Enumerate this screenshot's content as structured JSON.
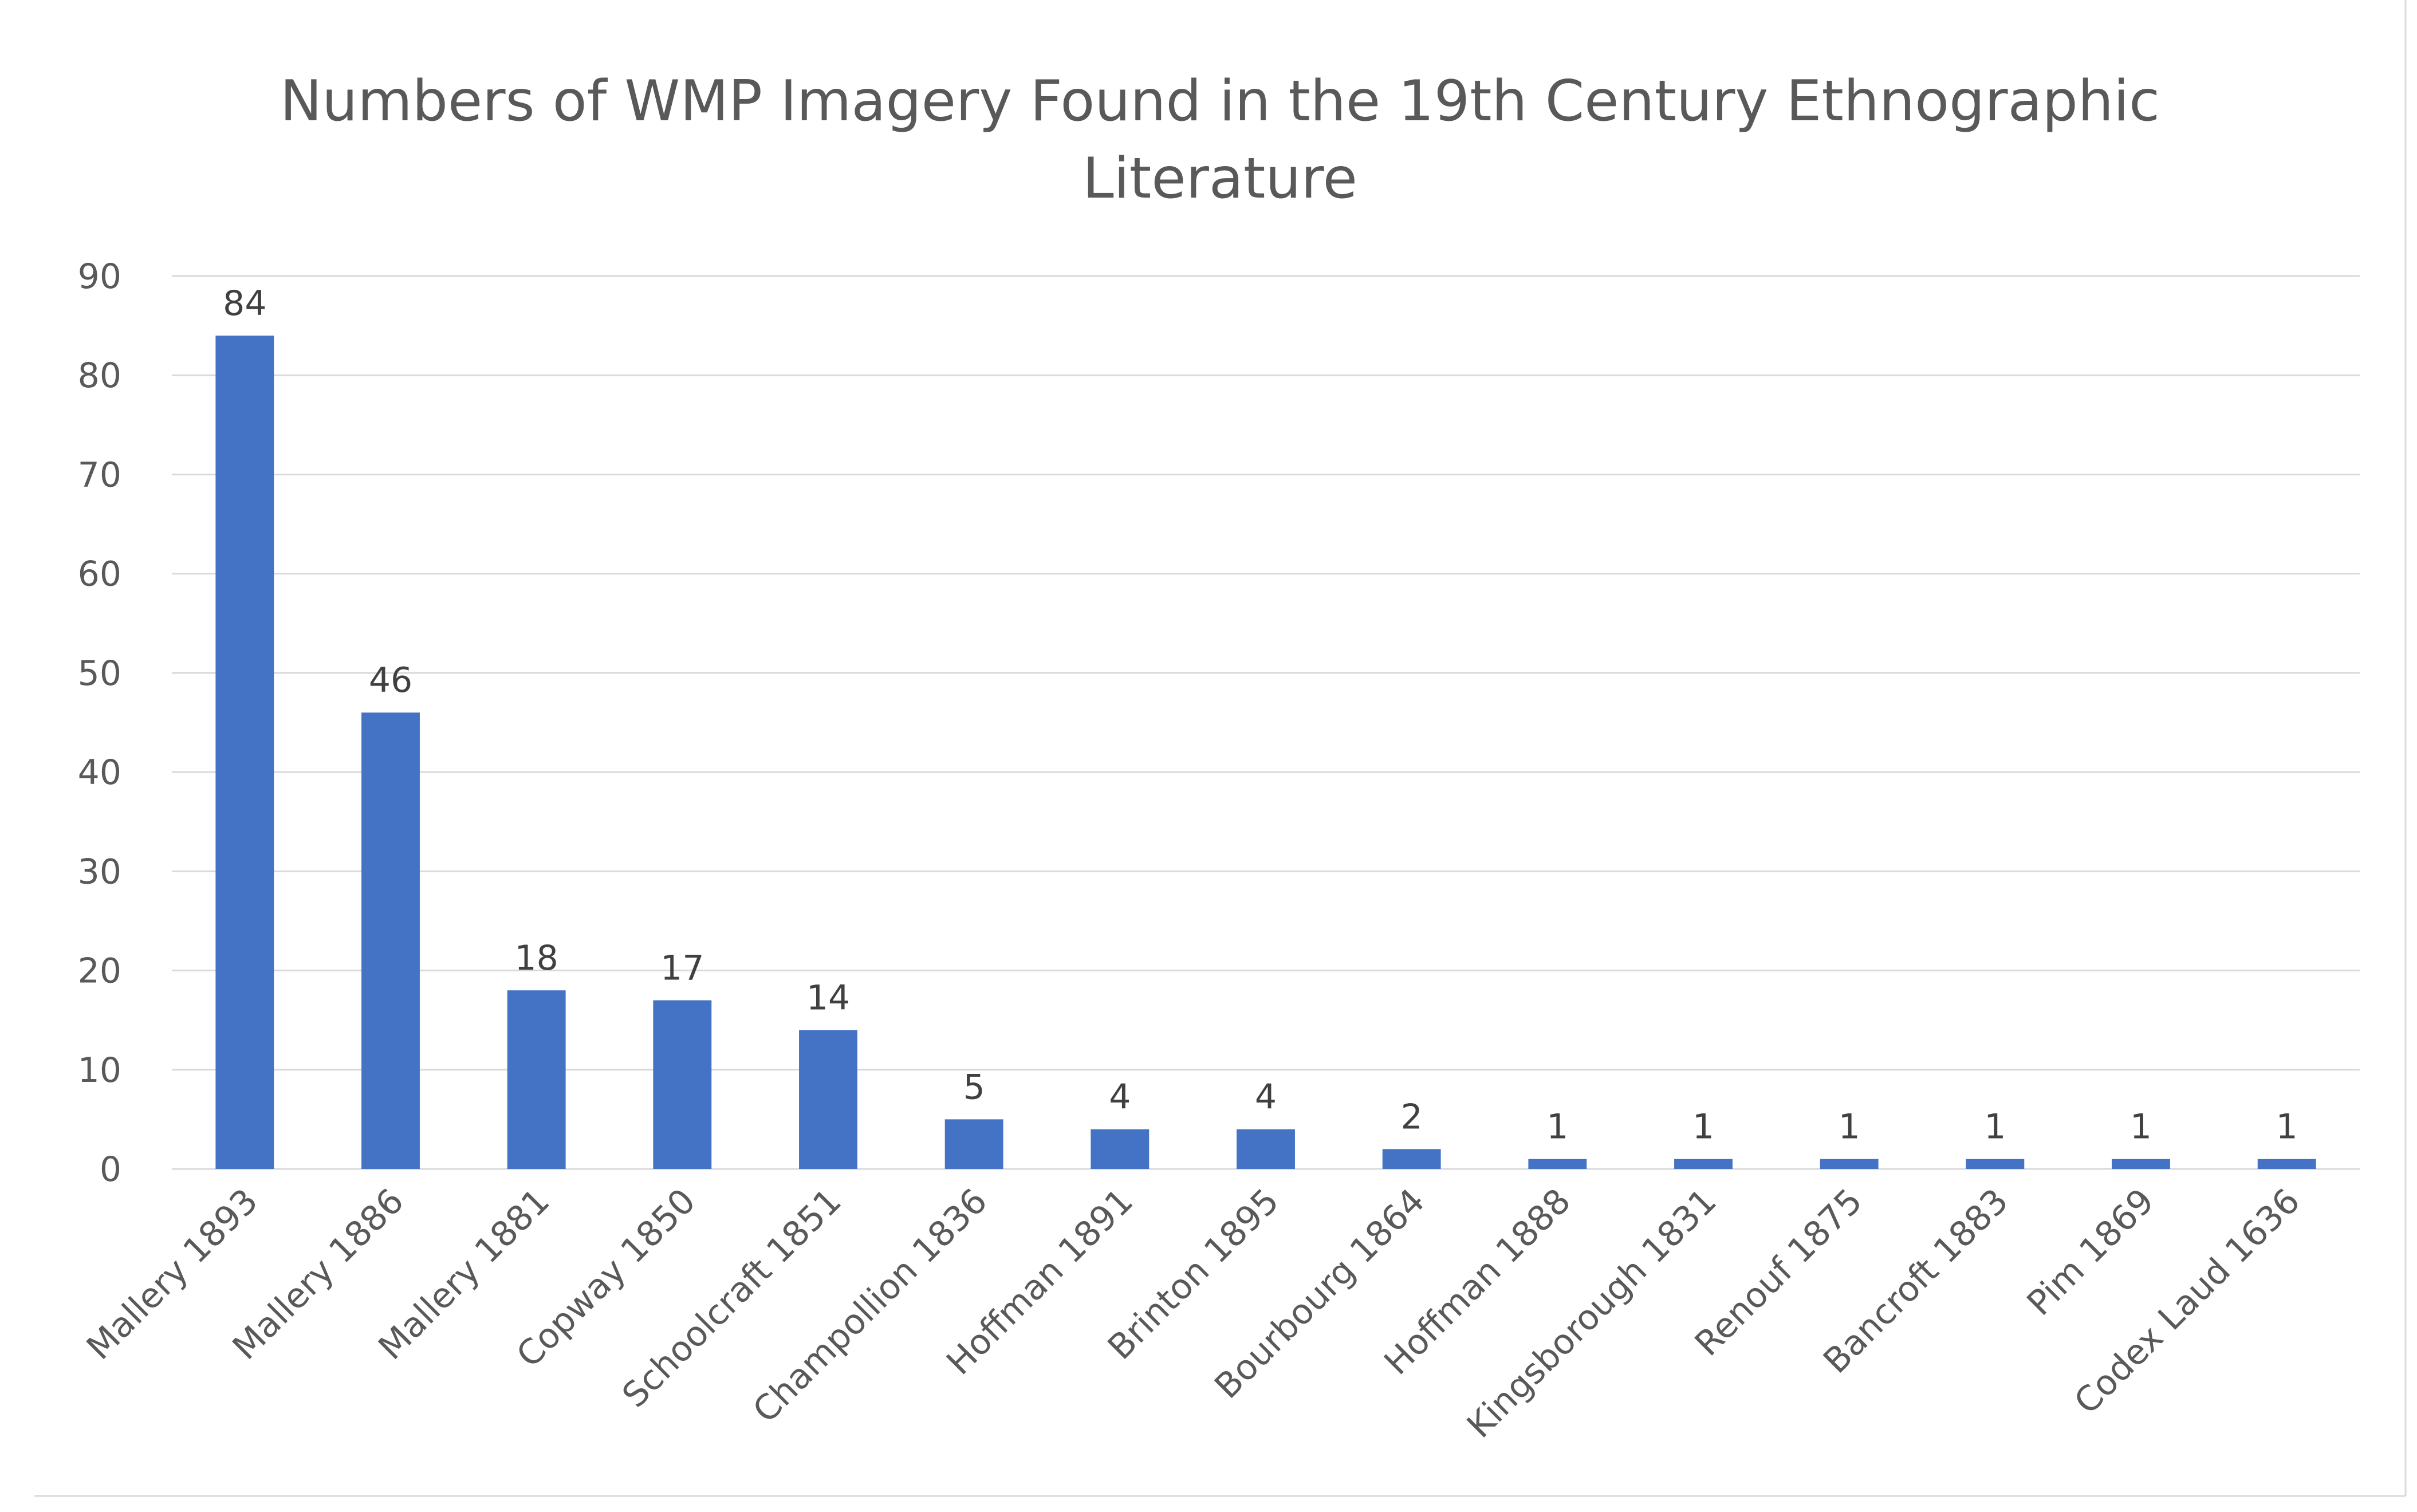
{
  "chart_data": {
    "type": "bar",
    "title": "Numbers of WMP Imagery Found in the 19th Century Ethnographic Literature",
    "title_lines": [
      "Numbers of WMP Imagery Found in the 19th Century Ethnographic",
      "Literature"
    ],
    "xlabel": "",
    "ylabel": "",
    "ylim": [
      0,
      90
    ],
    "yticks": [
      0,
      10,
      20,
      30,
      40,
      50,
      60,
      70,
      80,
      90
    ],
    "grid": true,
    "legend": "none",
    "data_labels": true,
    "bar_color": "#4472C4",
    "categories": [
      "Mallery 1893",
      "Mallery 1886",
      "Mallery 1881",
      "Copway 1850",
      "Schoolcraft 1851",
      "Champollion 1836",
      "Hoffman 1891",
      "Brinton 1895",
      "Bourbourg 1864",
      "Hoffman 1888",
      "Kingsborough 1831",
      "Renouf 1875",
      "Bancroft 1883",
      "Pim 1869",
      "Codex Laud 1636"
    ],
    "values": [
      84,
      46,
      18,
      17,
      14,
      5,
      4,
      4,
      2,
      1,
      1,
      1,
      1,
      1,
      1
    ]
  }
}
